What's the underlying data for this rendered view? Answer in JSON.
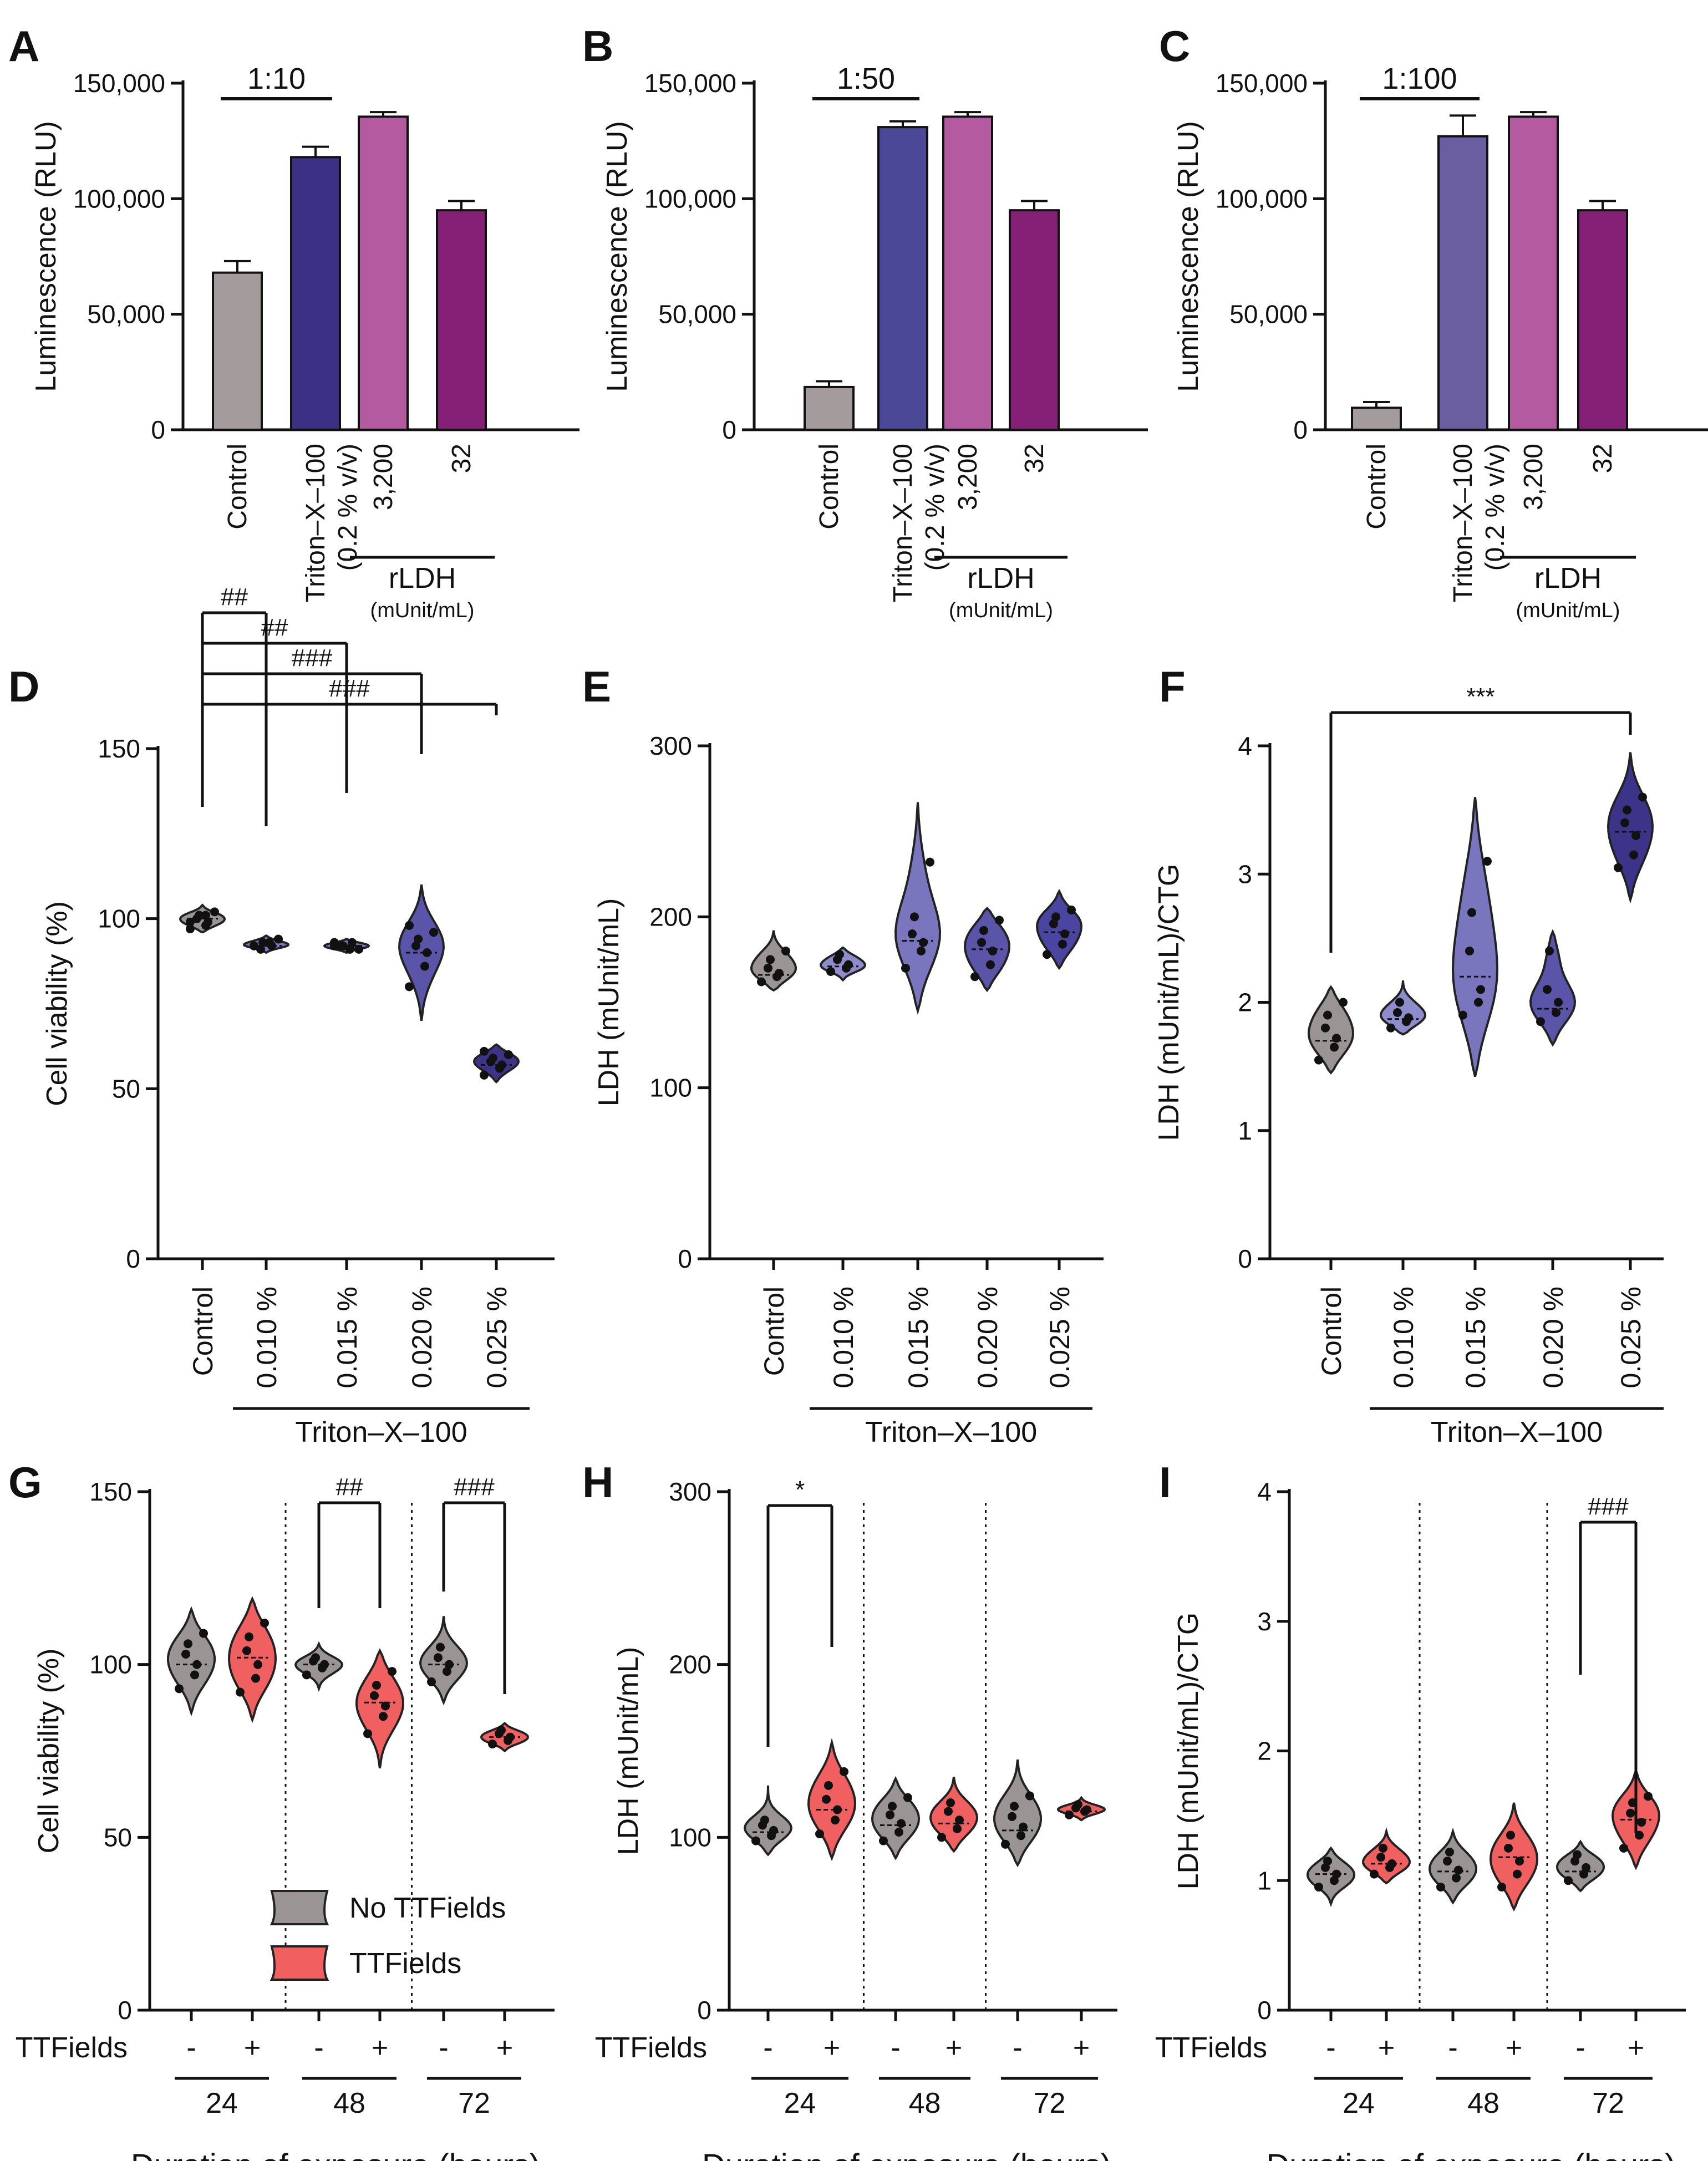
{
  "figure": {
    "description": "Nine-panel figure: LDH luminescence assay calibration (A-C), Triton-X-100 dose response (D-F), TTFields exposure time course (G-I)"
  },
  "chart_data": [
    {
      "id": "A",
      "type": "bar",
      "ylabel": "Luminescence (RLU)",
      "ylim": [
        0,
        150000
      ],
      "yticks": [
        "0",
        "50,000",
        "100,000",
        "150,000"
      ],
      "ytick_values": [
        0,
        50000,
        100000,
        150000
      ],
      "categories": [
        "Control",
        "Triton–X–100",
        "3,200",
        "32"
      ],
      "category_sublabels": [
        "",
        "(0.2 % v/v)",
        "",
        ""
      ],
      "values": [
        68000,
        118000,
        135500,
        95000
      ],
      "errors": [
        5000,
        4500,
        2000,
        4000
      ],
      "colors": [
        "#a49c9c",
        "#3c2f86",
        "#b35aa0",
        "#862076"
      ],
      "annotation": "1:10",
      "group_label": "rLDH",
      "group_units": "(mUnit/mL)"
    },
    {
      "id": "B",
      "type": "bar",
      "ylabel": "Luminescence (RLU)",
      "ylim": [
        0,
        150000
      ],
      "yticks": [
        "0",
        "50,000",
        "100,000",
        "150,000"
      ],
      "ytick_values": [
        0,
        50000,
        100000,
        150000
      ],
      "categories": [
        "Control",
        "Triton–X–100",
        "3,200",
        "32"
      ],
      "category_sublabels": [
        "",
        "(0.2 % v/v)",
        "",
        ""
      ],
      "values": [
        18500,
        131000,
        135500,
        95000
      ],
      "errors": [
        2500,
        2500,
        2000,
        4000
      ],
      "colors": [
        "#a49c9c",
        "#4b4897",
        "#b35aa0",
        "#862076"
      ],
      "annotation": "1:50",
      "group_label": "rLDH",
      "group_units": "(mUnit/mL)"
    },
    {
      "id": "C",
      "type": "bar",
      "ylabel": "Luminescence (RLU)",
      "ylim": [
        0,
        150000
      ],
      "yticks": [
        "0",
        "50,000",
        "100,000",
        "150,000"
      ],
      "ytick_values": [
        0,
        50000,
        100000,
        150000
      ],
      "categories": [
        "Control",
        "Triton–X–100",
        "3,200",
        "32"
      ],
      "category_sublabels": [
        "",
        "(0.2 % v/v)",
        "",
        ""
      ],
      "values": [
        9500,
        127000,
        135500,
        95000
      ],
      "errors": [
        2500,
        9000,
        2000,
        4000
      ],
      "colors": [
        "#a49c9c",
        "#6a5da0",
        "#b35aa0",
        "#862076"
      ],
      "annotation": "1:100",
      "group_label": "rLDH",
      "group_units": "(mUnit/mL)"
    },
    {
      "id": "D",
      "type": "violin",
      "ylabel": "Cell viability (%)",
      "ylim": [
        0,
        150
      ],
      "yticks": [
        "0",
        "50",
        "100",
        "150"
      ],
      "ytick_values": [
        0,
        50,
        100,
        150
      ],
      "categories": [
        "Control",
        "0.010 %",
        "0.015 %",
        "0.020 %",
        "0.025 %"
      ],
      "group_label": "Triton–X–100",
      "colors": [
        "#9b9494",
        "#7a76bd",
        "#7a76bd",
        "#5a55a8",
        "#3c3488"
      ],
      "series": [
        {
          "points": [
            97,
            98,
            99,
            100,
            101,
            102,
            99,
            101
          ],
          "range": [
            96,
            104
          ],
          "median": 100
        },
        {
          "points": [
            92,
            93,
            92,
            91,
            93,
            94,
            92
          ],
          "range": [
            90,
            95
          ],
          "median": 92
        },
        {
          "points": [
            92,
            91,
            93,
            92,
            92,
            91,
            93
          ],
          "range": [
            90,
            94
          ],
          "median": 92
        },
        {
          "points": [
            80,
            86,
            90,
            92,
            94,
            96,
            98
          ],
          "range": [
            70,
            110
          ],
          "median": 90
        },
        {
          "points": [
            54,
            56,
            57,
            58,
            59,
            60,
            61
          ],
          "range": [
            52,
            63
          ],
          "median": 57
        }
      ],
      "comparisons": [
        {
          "from": 0,
          "to": 1,
          "label": "##"
        },
        {
          "from": 0,
          "to": 2,
          "label": "##"
        },
        {
          "from": 0,
          "to": 3,
          "label": "###"
        },
        {
          "from": 0,
          "to": 4,
          "label": "###"
        }
      ]
    },
    {
      "id": "E",
      "type": "violin",
      "ylabel": "LDH (mUnit/mL)",
      "ylim": [
        0,
        300
      ],
      "yticks": [
        "0",
        "100",
        "200",
        "300"
      ],
      "ytick_values": [
        0,
        100,
        200,
        300
      ],
      "categories": [
        "Control",
        "0.010 %",
        "0.015 %",
        "0.020 %",
        "0.025 %"
      ],
      "group_label": "Triton–X–100",
      "colors": [
        "#9b9494",
        "#8f8ccc",
        "#7a76bd",
        "#5a55a8",
        "#4a45a0"
      ],
      "series": [
        {
          "points": [
            162,
            165,
            167,
            170,
            175,
            180
          ],
          "range": [
            157,
            192
          ],
          "median": 166
        },
        {
          "points": [
            168,
            170,
            172,
            175,
            178
          ],
          "range": [
            163,
            182
          ],
          "median": 171
        },
        {
          "points": [
            170,
            180,
            185,
            190,
            200,
            232
          ],
          "range": [
            145,
            267
          ],
          "median": 186
        },
        {
          "points": [
            165,
            172,
            180,
            185,
            192,
            198
          ],
          "range": [
            157,
            205
          ],
          "median": 181
        },
        {
          "points": [
            178,
            184,
            190,
            196,
            200,
            204
          ],
          "range": [
            170,
            215
          ],
          "median": 191
        }
      ]
    },
    {
      "id": "F",
      "type": "violin",
      "ylabel": "LDH (mUnit/mL)/CTG",
      "ylim": [
        0,
        4
      ],
      "yticks": [
        "0",
        "1",
        "2",
        "3",
        "4"
      ],
      "ytick_values": [
        0,
        1,
        2,
        3,
        4
      ],
      "categories": [
        "Control",
        "0.010 %",
        "0.015 %",
        "0.020 %",
        "0.025 %"
      ],
      "group_label": "Triton–X–100",
      "colors": [
        "#9b9494",
        "#8f8ccc",
        "#7a76bd",
        "#5a55a8",
        "#3c3488"
      ],
      "series": [
        {
          "points": [
            1.55,
            1.65,
            1.72,
            1.8,
            1.9,
            2.0
          ],
          "range": [
            1.45,
            2.12
          ],
          "median": 1.7
        },
        {
          "points": [
            1.8,
            1.85,
            1.88,
            1.92,
            2.0
          ],
          "range": [
            1.75,
            2.17
          ],
          "median": 1.87
        },
        {
          "points": [
            1.9,
            2.0,
            2.1,
            2.4,
            2.7,
            3.1
          ],
          "range": [
            1.42,
            3.6
          ],
          "median": 2.2
        },
        {
          "points": [
            1.85,
            1.92,
            2.0,
            2.1,
            2.4
          ],
          "range": [
            1.67,
            2.55
          ],
          "median": 1.95
        },
        {
          "points": [
            3.05,
            3.15,
            3.3,
            3.4,
            3.5,
            3.6
          ],
          "range": [
            2.8,
            3.95
          ],
          "median": 3.33
        }
      ],
      "comparisons": [
        {
          "from": 0,
          "to": 4,
          "label": "***"
        }
      ]
    },
    {
      "id": "G",
      "type": "violin",
      "ylabel": "Cell viability (%)",
      "ylim": [
        0,
        150
      ],
      "yticks": [
        "0",
        "50",
        "100",
        "150"
      ],
      "ytick_values": [
        0,
        50,
        100,
        150
      ],
      "categories": [
        "-",
        "+",
        "-",
        "+",
        "-",
        "+"
      ],
      "row_label": "TTFields",
      "groups": [
        "24",
        "48",
        "72"
      ],
      "xlabel": "Duration of exposure (hours)",
      "colors": [
        "#9b9494",
        "#f06060",
        "#9b9494",
        "#f06060",
        "#9b9494",
        "#f06060"
      ],
      "series": [
        {
          "points": [
            93,
            97,
            100,
            103,
            106,
            109
          ],
          "range": [
            86,
            116
          ],
          "median": 100
        },
        {
          "points": [
            92,
            96,
            100,
            104,
            108,
            112
          ],
          "range": [
            84,
            119
          ],
          "median": 102
        },
        {
          "points": [
            97,
            99,
            100,
            101,
            102
          ],
          "range": [
            93,
            106
          ],
          "median": 100
        },
        {
          "points": [
            80,
            85,
            88,
            91,
            94,
            98
          ],
          "range": [
            70,
            104
          ],
          "median": 89
        },
        {
          "points": [
            95,
            98,
            100,
            102,
            105
          ],
          "range": [
            89,
            114
          ],
          "median": 100
        },
        {
          "points": [
            77,
            78,
            79,
            80,
            81
          ],
          "range": [
            75,
            83
          ],
          "median": 79
        }
      ],
      "comparisons": [
        {
          "from": 2,
          "to": 3,
          "label": "##"
        },
        {
          "from": 4,
          "to": 5,
          "label": "###"
        }
      ],
      "legend": [
        {
          "label": "No TTFields",
          "color": "#9b9494"
        },
        {
          "label": "TTFields",
          "color": "#f06060"
        }
      ]
    },
    {
      "id": "H",
      "type": "violin",
      "ylabel": "LDH (mUnit/mL)",
      "ylim": [
        0,
        300
      ],
      "yticks": [
        "0",
        "100",
        "200",
        "300"
      ],
      "ytick_values": [
        0,
        100,
        200,
        300
      ],
      "categories": [
        "-",
        "+",
        "-",
        "+",
        "-",
        "+"
      ],
      "row_label": "TTFields",
      "groups": [
        "24",
        "48",
        "72"
      ],
      "xlabel": "Duration of exposure (hours)",
      "colors": [
        "#9b9494",
        "#f06060",
        "#9b9494",
        "#f06060",
        "#9b9494",
        "#f06060"
      ],
      "series": [
        {
          "points": [
            98,
            101,
            104,
            107,
            110
          ],
          "range": [
            90,
            130
          ],
          "median": 103
        },
        {
          "points": [
            102,
            110,
            116,
            122,
            130,
            138
          ],
          "range": [
            88,
            155
          ],
          "median": 116
        },
        {
          "points": [
            98,
            103,
            108,
            113,
            118,
            123
          ],
          "range": [
            88,
            134
          ],
          "median": 107
        },
        {
          "points": [
            100,
            105,
            110,
            115,
            120
          ],
          "range": [
            92,
            135
          ],
          "median": 108
        },
        {
          "points": [
            96,
            101,
            106,
            112,
            118,
            124
          ],
          "range": [
            84,
            145
          ],
          "median": 104
        },
        {
          "points": [
            113,
            115,
            116,
            117,
            119
          ],
          "range": [
            110,
            123
          ],
          "median": 115
        }
      ],
      "comparisons": [
        {
          "from": 0,
          "to": 1,
          "label": "*"
        }
      ]
    },
    {
      "id": "I",
      "type": "violin",
      "ylabel": "LDH (mUnit/mL)/CTG",
      "ylim": [
        0,
        4
      ],
      "yticks": [
        "0",
        "1",
        "2",
        "3",
        "4"
      ],
      "ytick_values": [
        0,
        1,
        2,
        3,
        4
      ],
      "categories": [
        "-",
        "+",
        "-",
        "+",
        "-",
        "+"
      ],
      "row_label": "TTFields",
      "groups": [
        "24",
        "48",
        "72"
      ],
      "xlabel": "Duration of exposure (hours)",
      "colors": [
        "#9b9494",
        "#f06060",
        "#9b9494",
        "#f06060",
        "#9b9494",
        "#f06060"
      ],
      "series": [
        {
          "points": [
            0.95,
            1.0,
            1.05,
            1.1,
            1.15
          ],
          "range": [
            0.82,
            1.25
          ],
          "median": 1.05
        },
        {
          "points": [
            1.05,
            1.1,
            1.13,
            1.18,
            1.25
          ],
          "range": [
            0.98,
            1.38
          ],
          "median": 1.13
        },
        {
          "points": [
            0.95,
            1.02,
            1.08,
            1.15,
            1.22
          ],
          "range": [
            0.83,
            1.38
          ],
          "median": 1.07
        },
        {
          "points": [
            0.95,
            1.05,
            1.15,
            1.25,
            1.35
          ],
          "range": [
            0.78,
            1.6
          ],
          "median": 1.18
        },
        {
          "points": [
            1.0,
            1.05,
            1.1,
            1.15,
            1.2
          ],
          "range": [
            0.92,
            1.3
          ],
          "median": 1.07
        },
        {
          "points": [
            1.25,
            1.35,
            1.45,
            1.52,
            1.6,
            1.65
          ],
          "range": [
            1.1,
            1.85
          ],
          "median": 1.47
        }
      ],
      "comparisons": [
        {
          "from": 4,
          "to": 5,
          "label": "###"
        }
      ]
    }
  ]
}
